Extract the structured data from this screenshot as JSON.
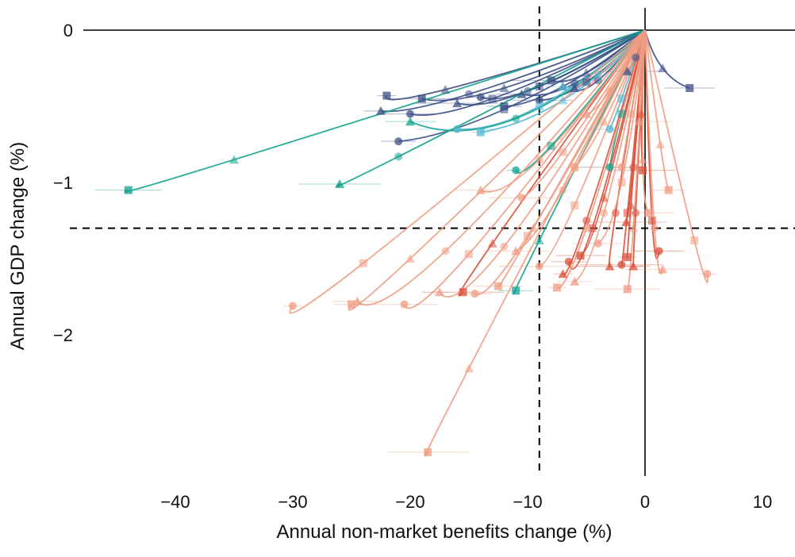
{
  "chart_data": {
    "type": "line",
    "title": "",
    "xlabel": "Annual non-market benefits change (%)",
    "ylabel": "Annual GDP change (%)",
    "xlim": [
      -46,
      13
    ],
    "ylim": [
      -2.95,
      0.15
    ],
    "x_ticks": [
      -40,
      -30,
      -20,
      -10,
      0,
      10
    ],
    "y_ticks": [
      0,
      -1,
      -2
    ],
    "x_tick_labels": [
      "−40",
      "−30",
      "−20",
      "−10",
      "0",
      "10"
    ],
    "y_tick_labels": [
      "0",
      "−1",
      "−2"
    ],
    "reference_lines": {
      "vertical_x": -9,
      "horizontal_y": -1.3
    },
    "colors": {
      "dark_blue": "#3b4f85",
      "light_blue": "#52b8d1",
      "teal": "#13a38e",
      "dark_red": "#d94f3a",
      "salmon": "#ef9c82"
    },
    "series": [
      {
        "color": "dark_blue",
        "end": [
          -22,
          -0.43
        ],
        "mid": [
          -17,
          -0.39
        ]
      },
      {
        "color": "dark_blue",
        "end": [
          -22.5,
          -0.53
        ],
        "mid": [
          -15,
          -0.42
        ]
      },
      {
        "color": "dark_blue",
        "end": [
          -20,
          -0.55
        ],
        "mid": [
          -13,
          -0.45
        ]
      },
      {
        "color": "dark_blue",
        "end": [
          -19,
          -0.45
        ],
        "mid": [
          -12,
          -0.38
        ]
      },
      {
        "color": "dark_blue",
        "end": [
          -16,
          -0.48
        ],
        "mid": [
          -10,
          -0.4
        ]
      },
      {
        "color": "dark_blue",
        "end": [
          -14,
          -0.44
        ],
        "mid": [
          -9,
          -0.37
        ]
      },
      {
        "color": "dark_blue",
        "end": [
          -12,
          -0.5
        ],
        "mid": [
          -7,
          -0.37
        ]
      },
      {
        "color": "dark_blue",
        "end": [
          -10.5,
          -0.42
        ],
        "mid": [
          -6,
          -0.35
        ]
      },
      {
        "color": "dark_blue",
        "end": [
          -9,
          -0.46
        ],
        "mid": [
          -5,
          -0.34
        ]
      },
      {
        "color": "dark_blue",
        "end": [
          -8,
          -0.33
        ],
        "mid": [
          -5,
          -0.28
        ]
      },
      {
        "color": "dark_blue",
        "end": [
          -6,
          -0.38
        ],
        "mid": [
          -4,
          -0.33
        ]
      },
      {
        "color": "dark_blue",
        "end": [
          -21,
          -0.73
        ],
        "mid": [
          -12,
          -0.52
        ]
      },
      {
        "color": "dark_blue",
        "end": [
          3.8,
          -0.38
        ],
        "mid": [
          1.5,
          -0.25
        ]
      },
      {
        "color": "dark_blue",
        "end": [
          -1.5,
          -0.27
        ],
        "mid": [
          -0.8,
          -0.18
        ]
      },
      {
        "color": "light_blue",
        "end": [
          -16,
          -0.65
        ],
        "mid": [
          -9,
          -0.5
        ]
      },
      {
        "color": "light_blue",
        "end": [
          -14,
          -0.67
        ],
        "mid": [
          -7,
          -0.46
        ]
      },
      {
        "color": "light_blue",
        "end": [
          -7,
          -0.37
        ],
        "mid": [
          -4,
          -0.3
        ]
      },
      {
        "color": "light_blue",
        "end": [
          -3,
          -0.65
        ],
        "mid": [
          -2,
          -0.45
        ]
      },
      {
        "color": "teal",
        "end": [
          -44,
          -1.05
        ],
        "mid": [
          -35,
          -0.85
        ]
      },
      {
        "color": "teal",
        "end": [
          -26,
          -1.01
        ],
        "mid": [
          -21,
          -0.83
        ]
      },
      {
        "color": "teal",
        "end": [
          -11,
          -0.92
        ],
        "mid": [
          -8,
          -0.76
        ]
      },
      {
        "color": "teal",
        "end": [
          -11,
          -1.71
        ],
        "mid": [
          -9,
          -1.38
        ]
      },
      {
        "color": "teal",
        "end": [
          -20,
          -0.6
        ],
        "mid": [
          -11,
          -0.58
        ]
      },
      {
        "color": "teal",
        "end": [
          -3,
          -0.9
        ],
        "mid": [
          -2,
          -0.55
        ]
      },
      {
        "color": "dark_red",
        "end": [
          -15.5,
          -1.72
        ],
        "mid": [
          -13,
          -1.4
        ]
      },
      {
        "color": "dark_red",
        "end": [
          -7,
          -1.6
        ],
        "mid": [
          -5,
          -1.25
        ]
      },
      {
        "color": "dark_red",
        "end": [
          -6.5,
          -1.52
        ],
        "mid": [
          -4.5,
          -1.3
        ]
      },
      {
        "color": "dark_red",
        "end": [
          -5.5,
          -1.48
        ],
        "mid": [
          -3.5,
          -1.1
        ]
      },
      {
        "color": "dark_red",
        "end": [
          -3,
          -1.55
        ],
        "mid": [
          -2.5,
          -1.2
        ]
      },
      {
        "color": "dark_red",
        "end": [
          -2,
          -1.54
        ],
        "mid": [
          -1.5,
          -1.2
        ]
      },
      {
        "color": "dark_red",
        "end": [
          -1.5,
          -1.49
        ],
        "mid": [
          -1.2,
          -1.15
        ]
      },
      {
        "color": "dark_red",
        "end": [
          -1,
          -1.55
        ],
        "mid": [
          -0.8,
          -1.2
        ]
      },
      {
        "color": "dark_red",
        "end": [
          1.2,
          -1.45
        ],
        "mid": [
          0.6,
          -1.25
        ]
      },
      {
        "color": "dark_red",
        "end": [
          -0.2,
          -0.92
        ],
        "mid": [
          -0.3,
          -0.55
        ]
      },
      {
        "color": "dark_red",
        "end": [
          -1.6,
          -1.26
        ],
        "mid": [
          -1,
          -0.9
        ]
      },
      {
        "color": "salmon",
        "end": [
          -30,
          -1.81
        ],
        "mid": [
          -24,
          -1.53
        ]
      },
      {
        "color": "salmon",
        "end": [
          -25,
          -1.8
        ],
        "mid": [
          -20,
          -1.5
        ]
      },
      {
        "color": "salmon",
        "end": [
          -24.5,
          -1.78
        ],
        "mid": [
          -17,
          -1.45
        ]
      },
      {
        "color": "salmon",
        "end": [
          -20.5,
          -1.8
        ],
        "mid": [
          -15,
          -1.47
        ]
      },
      {
        "color": "salmon",
        "end": [
          -18.5,
          -2.77
        ],
        "mid": [
          -15,
          -2.22
        ]
      },
      {
        "color": "salmon",
        "end": [
          -17.5,
          -1.72
        ],
        "mid": [
          -12,
          -1.42
        ]
      },
      {
        "color": "salmon",
        "end": [
          -14.5,
          -1.73
        ],
        "mid": [
          -10,
          -1.35
        ]
      },
      {
        "color": "salmon",
        "end": [
          -12.5,
          -1.68
        ],
        "mid": [
          -9.5,
          -1.3
        ]
      },
      {
        "color": "salmon",
        "end": [
          -11,
          -1.45
        ],
        "mid": [
          -7,
          -1.05
        ]
      },
      {
        "color": "salmon",
        "end": [
          -9,
          -1.55
        ],
        "mid": [
          -6,
          -1.15
        ]
      },
      {
        "color": "salmon",
        "end": [
          -7.5,
          -1.69
        ],
        "mid": [
          -5,
          -1.3
        ]
      },
      {
        "color": "salmon",
        "end": [
          -6,
          -1.65
        ],
        "mid": [
          -3.5,
          -1.2
        ]
      },
      {
        "color": "salmon",
        "end": [
          -4,
          -1.4
        ],
        "mid": [
          -2,
          -1.0
        ]
      },
      {
        "color": "salmon",
        "end": [
          -1.5,
          -1.7
        ],
        "mid": [
          -1,
          -1.3
        ]
      },
      {
        "color": "salmon",
        "end": [
          1.5,
          -1.57
        ],
        "mid": [
          0.8,
          -1.3
        ]
      },
      {
        "color": "salmon",
        "end": [
          5.3,
          -1.6
        ],
        "mid": [
          4.2,
          -1.38
        ]
      },
      {
        "color": "salmon",
        "end": [
          2.0,
          -1.05
        ],
        "mid": [
          1.3,
          -0.75
        ]
      },
      {
        "color": "salmon",
        "end": [
          -14,
          -1.05
        ],
        "mid": [
          -9,
          -0.85
        ]
      },
      {
        "color": "salmon",
        "end": [
          -10.5,
          -1.1
        ],
        "mid": [
          -7,
          -0.8
        ]
      },
      {
        "color": "salmon",
        "end": [
          -6,
          -0.9
        ],
        "mid": [
          -3.5,
          -0.6
        ]
      },
      {
        "color": "salmon",
        "end": [
          -5,
          -0.55
        ],
        "mid": [
          -3,
          -0.4
        ]
      },
      {
        "color": "salmon",
        "end": [
          -2,
          -0.9
        ],
        "mid": [
          -1.2,
          -0.55
        ]
      },
      {
        "color": "salmon",
        "end": [
          0.3,
          -1.2
        ],
        "mid": [
          -0.2,
          -0.85
        ]
      },
      {
        "color": "salmon",
        "end": [
          -0.5,
          -0.6
        ],
        "mid": [
          -0.4,
          -0.35
        ]
      }
    ]
  }
}
